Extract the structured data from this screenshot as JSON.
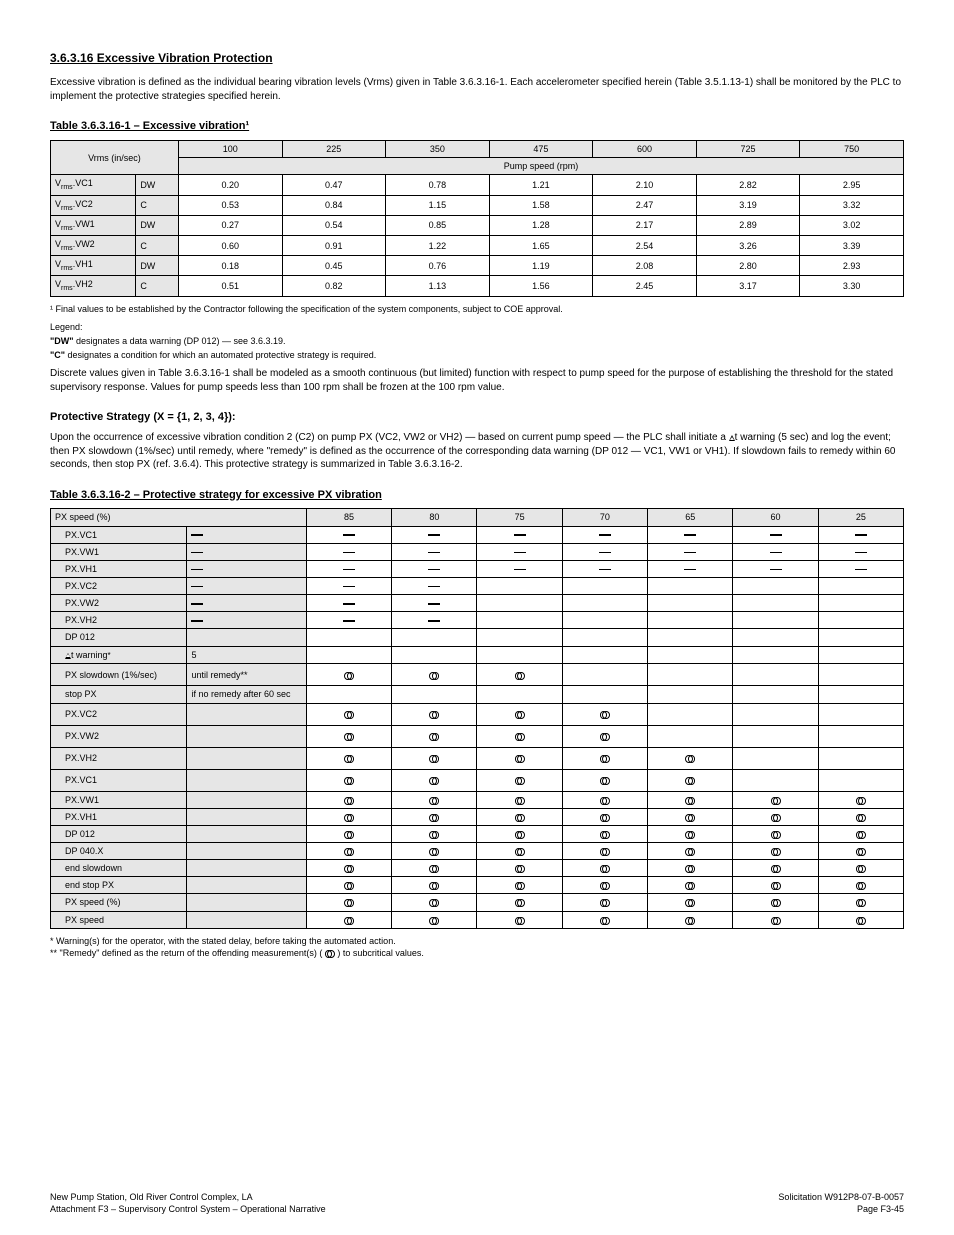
{
  "title": "3.6.3.16 Excessive Vibration Protection",
  "intro": "Excessive vibration is defined as the individual bearing vibration levels (Vrms) given in Table 3.6.3.16-1. Each accelerometer specified herein (Table 3.5.1.13-1) shall be monitored by the PLC to implement the protective strategies specified herein.",
  "sec1_head": "Table 3.6.3.16-1 – Excessive vibration¹",
  "t1": {
    "h1": [
      "Vrms (in/sec)"
    ],
    "h2": [
      "Pump speed (rpm)"
    ],
    "cols": [
      "100",
      "225",
      "350",
      "475",
      "600",
      "725",
      "750"
    ],
    "rows": [
      {
        "k": "VC1",
        "s": "DW",
        "v": [
          "0.20",
          "0.47",
          "0.78",
          "1.21",
          "2.10",
          "2.82",
          "2.95"
        ]
      },
      {
        "k": "VC2",
        "s": "C",
        "v": [
          "0.53",
          "0.84",
          "1.15",
          "1.58",
          "2.47",
          "3.19",
          "3.32"
        ]
      },
      {
        "k": "VW1",
        "s": "DW",
        "v": [
          "0.27",
          "0.54",
          "0.85",
          "1.28",
          "2.17",
          "2.89",
          "3.02"
        ]
      },
      {
        "k": "VW2",
        "s": "C",
        "v": [
          "0.60",
          "0.91",
          "1.22",
          "1.65",
          "2.54",
          "3.26",
          "3.39"
        ]
      },
      {
        "k": "VH1",
        "s": "DW",
        "v": [
          "0.18",
          "0.45",
          "0.76",
          "1.19",
          "2.08",
          "2.80",
          "2.93"
        ]
      },
      {
        "k": "VH2",
        "s": "C",
        "v": [
          "0.51",
          "0.82",
          "1.13",
          "1.56",
          "2.45",
          "3.17",
          "3.30"
        ]
      }
    ]
  },
  "note1": "¹ Final values to be established by the Contractor following the specification of the system components, subject to COE approval.",
  "legend_head": "Legend:",
  "legend": [
    {
      "b": "\"DW\"",
      "t": "  designates a data warning (DP 012) — see 3.6.3.19."
    },
    {
      "b": "\"C\"",
      "t": "  designates a condition for which an automated protective strategy is required."
    }
  ],
  "t1_para": "Discrete values given in Table 3.6.3.16-1 shall be modeled as a smooth continuous (but limited) function with respect to pump speed for the purpose of establishing the threshold for the stated supervisory response. Values for pump speeds less than 100 rpm shall be frozen at the 100 rpm value.",
  "p_head": "Protective Strategy (X = {1, 2, 3, 4}):",
  "p_text": "Upon the occurrence of excessive vibration condition 2 (C2) on pump PX (VC2, VW2 or VH2) — based on current pump speed — the PLC shall initiate a Δt warning (5 sec) and log the event; then PX slowdown (1%/sec) until remedy, where \"remedy\" is defined as the occurrence of the corresponding data warning (DP 012 — VC1, VW1 or VH1). If slowdown fails to remedy within 60 seconds, then stop PX (ref. 3.6.4). This protective strategy is summarized in Table 3.6.3.16-2.",
  "sec2_head": "Table 3.6.3.16-2 – Protective strategy for excessive PX vibration",
  "t2": {
    "header": [
      "PX speed (%)",
      "85",
      "80",
      "75",
      "70",
      "65",
      "60",
      "25"
    ],
    "rows": [
      {
        "l": "PX.VC1",
        "s": "true",
        "v": [
          "true",
          "true",
          "true",
          "true",
          "true",
          "true",
          "true"
        ]
      },
      {
        "l": "PX.VW1",
        "s": "true",
        "v": [
          "true",
          "true",
          "true",
          "true",
          "true",
          "true",
          "true"
        ]
      },
      {
        "l": "PX.VH1",
        "s": "true",
        "v": [
          "true",
          "true",
          "true",
          "true",
          "true",
          "true",
          "true"
        ]
      },
      {
        "l": "PX.VC2",
        "s": "true",
        "v": [
          "true",
          "true",
          "",
          "",
          "",
          "",
          ""
        ]
      },
      {
        "l": "PX.VW2",
        "s": "true",
        "v": [
          "true",
          "true",
          "",
          "",
          "",
          "",
          ""
        ]
      },
      {
        "l": "PX.VH2",
        "s": "true",
        "v": [
          "true",
          "true",
          "",
          "",
          "",
          "",
          ""
        ]
      },
      {
        "l": "DP 012",
        "s": "",
        "v": [
          "",
          "",
          "",
          "",
          "",
          "",
          ""
        ]
      },
      {
        "l": "Δt warning*",
        "s": "5",
        "v": [
          "",
          "",
          "",
          "",
          "",
          "",
          ""
        ]
      },
      {
        "l": "PX slowdown (1%/sec)",
        "k": "h",
        "s": "until remedy**",
        "v": [
          "INF",
          "INF",
          "INF",
          "",
          "",
          "",
          ""
        ]
      },
      {
        "l": "stop PX",
        "s": "if no remedy after 60 sec",
        "v": [
          "",
          "",
          "",
          "",
          "",
          "",
          ""
        ]
      },
      {
        "l": "PX.VC2",
        "s": "",
        "k": "h",
        "v": [
          "INF",
          "INF",
          "INF",
          "INF",
          "",
          "",
          ""
        ]
      },
      {
        "l": "PX.VW2",
        "s": "",
        "k": "h",
        "v": [
          "INF",
          "INF",
          "INF",
          "INF",
          "",
          "",
          ""
        ]
      },
      {
        "l": "PX.VH2",
        "s": "",
        "k": "h",
        "v": [
          "INF",
          "INF",
          "INF",
          "INF",
          "INF",
          "",
          ""
        ]
      },
      {
        "l": "PX.VC1",
        "s": "",
        "k": "h",
        "v": [
          "INF",
          "INF",
          "INF",
          "INF",
          "INF",
          "",
          ""
        ]
      },
      {
        "l": "PX.VW1",
        "s": "",
        "v": [
          "INF",
          "INF",
          "INF",
          "INF",
          "INF",
          "INF",
          "INF"
        ]
      },
      {
        "l": "PX.VH1",
        "s": "",
        "v": [
          "INF",
          "INF",
          "INF",
          "INF",
          "INF",
          "INF",
          "INF"
        ]
      },
      {
        "l": "DP 012",
        "s": "",
        "v": [
          "INF",
          "INF",
          "INF",
          "INF",
          "INF",
          "INF",
          "INF"
        ]
      },
      {
        "l": "DP 040.X",
        "s": "",
        "v": [
          "INF",
          "INF",
          "INF",
          "INF",
          "INF",
          "INF",
          "INF"
        ]
      },
      {
        "l": "end slowdown",
        "s": "",
        "v": [
          "INF",
          "INF",
          "INF",
          "INF",
          "INF",
          "INF",
          "INF"
        ]
      },
      {
        "l": "end stop PX",
        "s": "",
        "v": [
          "INF",
          "INF",
          "INF",
          "INF",
          "INF",
          "INF",
          "INF"
        ]
      },
      {
        "l": "PX speed (%)",
        "s": "",
        "v": [
          "INF",
          "INF",
          "INF",
          "INF",
          "INF",
          "INF",
          "INF"
        ]
      },
      {
        "l": "PX speed",
        "s": "",
        "v": [
          "INF",
          "INF",
          "INF",
          "INF",
          "INF",
          "INF",
          "INF"
        ]
      }
    ]
  },
  "t2_foot": [
    "* Warning(s) for the operator, with the stated delay, before taking the automated action.",
    "** \"Remedy\" defined as the return of the offending measurement(s) (  INF  ) to subcritical values."
  ],
  "foot_left1": "New Pump Station, Old River Control Complex, LA",
  "foot_left2": "Attachment F3 – Supervisory Control System – Operational Narrative",
  "foot_right1": "Solicitation W912P8-07-B-0057",
  "foot_right2": "Page F3-45"
}
